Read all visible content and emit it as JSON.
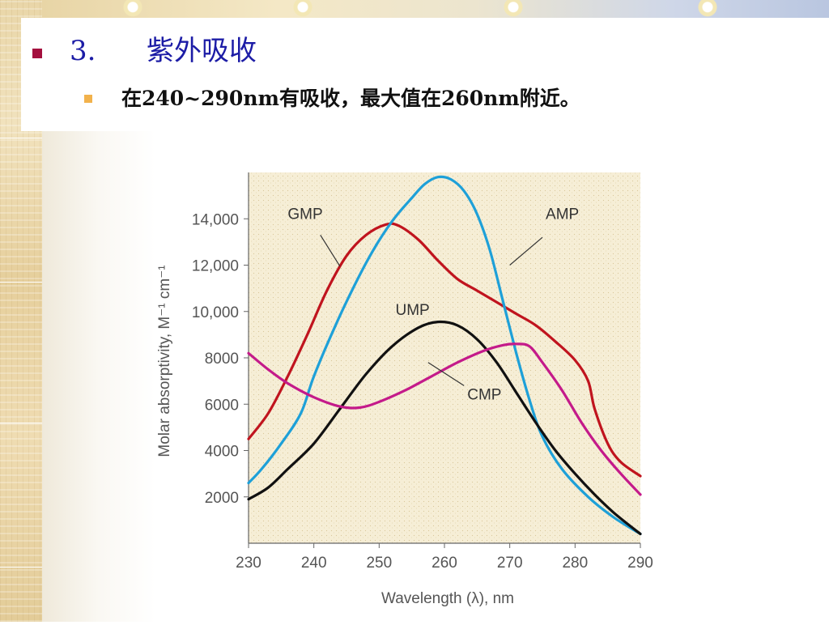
{
  "slide": {
    "heading_number": "3.",
    "heading_text": "紫外吸收",
    "bullet_text": "在240~290nm有吸收，最大值在260nm附近。",
    "colors": {
      "heading": "#1c1ca6",
      "bullet_primary": "#a4103e",
      "bullet_secondary": "#f2b24c"
    }
  },
  "chart_data": {
    "type": "line",
    "xlabel": "Wavelength (λ), nm",
    "ylabel": "Molar absorptivity, M⁻¹ cm⁻¹",
    "xlim": [
      230,
      290
    ],
    "ylim": [
      0,
      16000
    ],
    "x_ticks": [
      "230",
      "240",
      "250",
      "260",
      "270",
      "280",
      "290"
    ],
    "y_ticks": [
      "2000",
      "4000",
      "6000",
      "8000",
      "10,000",
      "12,000",
      "14,000"
    ],
    "plot_background": "#f5ecd2",
    "series": [
      {
        "name": "GMP",
        "color": "#c0141e",
        "points": [
          [
            230,
            4500
          ],
          [
            233,
            5600
          ],
          [
            236,
            7200
          ],
          [
            239,
            9000
          ],
          [
            242,
            10900
          ],
          [
            245,
            12400
          ],
          [
            248,
            13300
          ],
          [
            251,
            13750
          ],
          [
            253,
            13700
          ],
          [
            256,
            13100
          ],
          [
            259,
            12200
          ],
          [
            262,
            11400
          ],
          [
            265,
            10900
          ],
          [
            268,
            10400
          ],
          [
            271,
            9900
          ],
          [
            274,
            9400
          ],
          [
            277,
            8700
          ],
          [
            280,
            7900
          ],
          [
            282,
            7000
          ],
          [
            283,
            5800
          ],
          [
            285,
            4300
          ],
          [
            287,
            3500
          ],
          [
            290,
            2900
          ]
        ]
      },
      {
        "name": "AMP",
        "color": "#1ea0d8",
        "points": [
          [
            230,
            2600
          ],
          [
            232,
            3200
          ],
          [
            235,
            4300
          ],
          [
            238,
            5600
          ],
          [
            240,
            7200
          ],
          [
            243,
            9200
          ],
          [
            246,
            11000
          ],
          [
            249,
            12600
          ],
          [
            252,
            13900
          ],
          [
            255,
            14900
          ],
          [
            257,
            15500
          ],
          [
            259,
            15800
          ],
          [
            261,
            15700
          ],
          [
            263,
            15200
          ],
          [
            265,
            14200
          ],
          [
            267,
            12600
          ],
          [
            269,
            10400
          ],
          [
            271,
            8200
          ],
          [
            273,
            6200
          ],
          [
            275,
            4600
          ],
          [
            278,
            3200
          ],
          [
            282,
            2000
          ],
          [
            286,
            1100
          ],
          [
            290,
            400
          ]
        ]
      },
      {
        "name": "UMP",
        "color": "#111111",
        "points": [
          [
            230,
            1900
          ],
          [
            233,
            2400
          ],
          [
            236,
            3200
          ],
          [
            240,
            4300
          ],
          [
            244,
            5800
          ],
          [
            248,
            7300
          ],
          [
            252,
            8500
          ],
          [
            256,
            9300
          ],
          [
            259,
            9550
          ],
          [
            262,
            9400
          ],
          [
            265,
            8800
          ],
          [
            268,
            7800
          ],
          [
            271,
            6500
          ],
          [
            274,
            5200
          ],
          [
            277,
            4000
          ],
          [
            280,
            3000
          ],
          [
            283,
            2100
          ],
          [
            286,
            1300
          ],
          [
            290,
            400
          ]
        ]
      },
      {
        "name": "CMP",
        "color": "#c41a8a",
        "points": [
          [
            230,
            8200
          ],
          [
            233,
            7500
          ],
          [
            236,
            6900
          ],
          [
            240,
            6300
          ],
          [
            244,
            5900
          ],
          [
            247,
            5850
          ],
          [
            250,
            6100
          ],
          [
            254,
            6600
          ],
          [
            258,
            7200
          ],
          [
            262,
            7800
          ],
          [
            266,
            8300
          ],
          [
            269,
            8550
          ],
          [
            271,
            8600
          ],
          [
            273,
            8500
          ],
          [
            275,
            7800
          ],
          [
            278,
            6600
          ],
          [
            281,
            5200
          ],
          [
            284,
            4000
          ],
          [
            287,
            3000
          ],
          [
            290,
            2100
          ]
        ]
      }
    ]
  }
}
